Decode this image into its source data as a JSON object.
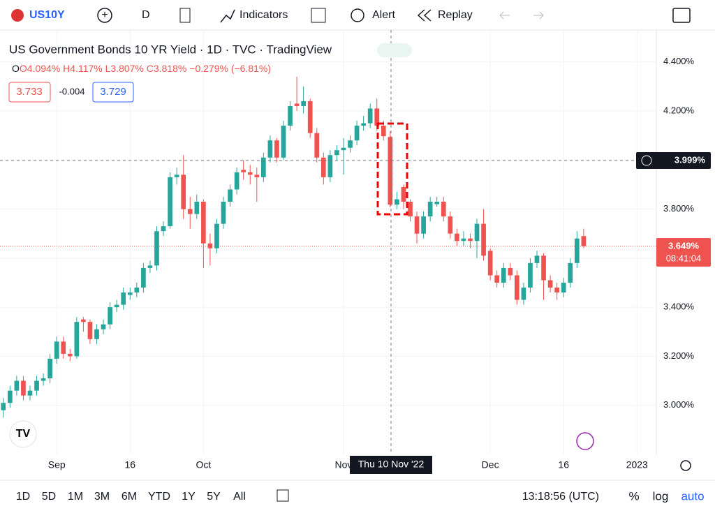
{
  "toolbar": {
    "symbol": "US10Y",
    "interval": "D",
    "indicators": "Indicators",
    "alert": "Alert",
    "replay": "Replay"
  },
  "legend": {
    "title": "US Government Bonds 10 YR Yield · 1D · TVC · TradingView",
    "open": "O4.094%",
    "high": "H4.117%",
    "low": "L3.807%",
    "close": "C3.818%",
    "change": "−0.279% (−6.81%)",
    "bid": "3.733",
    "spread": "-0.004",
    "ask": "3.729"
  },
  "price_labels": {
    "crosshair": "3.999%",
    "last": "3.649%",
    "countdown": "08:41:04",
    "crosshair_date": "Thu 10 Nov '22"
  },
  "bottom_bar": {
    "ranges": [
      "1D",
      "5D",
      "1M",
      "3M",
      "6M",
      "YTD",
      "1Y",
      "5Y",
      "All"
    ],
    "clock": "13:18:56 (UTC)",
    "percent": "%",
    "log": "log",
    "auto": "auto"
  },
  "chart_data": {
    "type": "candlestick",
    "up_color": "#26a69a",
    "down_color": "#ef5350",
    "grid": true,
    "xlim": [
      -0.5,
      97.9
    ],
    "xticks": [
      {
        "value": 8,
        "label": "Sep"
      },
      {
        "value": 19,
        "label": "16"
      },
      {
        "value": 30,
        "label": "Oct"
      },
      {
        "value": 51,
        "label": "Nov"
      },
      {
        "value": 73,
        "label": "Dec"
      },
      {
        "value": 84,
        "label": "16"
      },
      {
        "value": 95,
        "label": "2023"
      }
    ],
    "ylim": [
      2.8,
      4.53
    ],
    "yticks": [
      {
        "value": 3.0,
        "label": "3.000%"
      },
      {
        "value": 3.2,
        "label": "3.200%"
      },
      {
        "value": 3.4,
        "label": "3.400%"
      },
      {
        "value": 3.6,
        "label": "3.600%"
      },
      {
        "value": 3.8,
        "label": "3.800%"
      },
      {
        "value": 4.0,
        "label": "4.000%"
      },
      {
        "value": 4.2,
        "label": "4.200%"
      },
      {
        "value": 4.4,
        "label": "4.400%"
      }
    ],
    "open": [
      2.98,
      3.01,
      3.06,
      3.1,
      3.04,
      3.06,
      3.1,
      3.11,
      3.19,
      3.26,
      3.21,
      3.2,
      3.35,
      3.34,
      3.27,
      3.31,
      3.33,
      3.4,
      3.41,
      3.45,
      3.46,
      3.48,
      3.56,
      3.57,
      3.71,
      3.73,
      3.93,
      3.94,
      3.8,
      3.78,
      3.83,
      3.66,
      3.64,
      3.74,
      3.83,
      3.88,
      3.96,
      3.95,
      3.94,
      3.93,
      4.01,
      4.08,
      4.01,
      4.14,
      4.23,
      4.22,
      4.24,
      4.11,
      4.01,
      3.93,
      4.02,
      4.04,
      4.05,
      4.08,
      4.14,
      4.15,
      4.21,
      4.14,
      4.094,
      3.818,
      3.89,
      3.83,
      3.77,
      3.7,
      3.77,
      3.82,
      3.83,
      3.77,
      3.7,
      3.67,
      3.68,
      3.67,
      3.74,
      3.63,
      3.53,
      3.5,
      3.56,
      3.53,
      3.43,
      3.48,
      3.58,
      3.61,
      3.51,
      3.48,
      3.46,
      3.5,
      3.58,
      3.69
    ],
    "high": [
      3.03,
      3.08,
      3.12,
      3.12,
      3.08,
      3.12,
      3.13,
      3.21,
      3.28,
      3.28,
      3.23,
      3.36,
      3.36,
      3.35,
      3.33,
      3.35,
      3.42,
      3.43,
      3.48,
      3.48,
      3.5,
      3.58,
      3.59,
      3.73,
      3.75,
      3.95,
      3.97,
      4.02,
      3.85,
      3.86,
      3.84,
      3.7,
      3.76,
      3.85,
      3.9,
      3.97,
      4.0,
      3.98,
      3.97,
      4.03,
      4.1,
      4.09,
      4.16,
      4.24,
      4.34,
      4.3,
      4.25,
      4.13,
      4.03,
      4.04,
      4.06,
      4.09,
      4.1,
      4.16,
      4.18,
      4.23,
      4.25,
      4.16,
      4.117,
      3.87,
      3.9,
      3.84,
      3.79,
      3.79,
      3.85,
      3.85,
      3.85,
      3.79,
      3.72,
      3.71,
      3.7,
      3.76,
      3.8,
      3.64,
      3.55,
      3.58,
      3.58,
      3.55,
      3.5,
      3.6,
      3.63,
      3.62,
      3.53,
      3.5,
      3.52,
      3.6,
      3.71,
      3.72
    ],
    "low": [
      2.95,
      2.99,
      3.04,
      3.02,
      3.02,
      3.04,
      3.08,
      3.09,
      3.17,
      3.19,
      3.18,
      3.19,
      3.3,
      3.25,
      3.25,
      3.29,
      3.31,
      3.38,
      3.39,
      3.43,
      3.44,
      3.46,
      3.54,
      3.55,
      3.69,
      3.72,
      3.9,
      3.76,
      3.72,
      3.76,
      3.56,
      3.57,
      3.62,
      3.72,
      3.81,
      3.86,
      3.92,
      3.9,
      3.83,
      3.91,
      3.99,
      3.99,
      4.0,
      4.12,
      4.2,
      4.19,
      4.09,
      3.99,
      3.9,
      3.91,
      4.0,
      3.94,
      4.03,
      4.06,
      4.12,
      4.13,
      4.12,
      4.08,
      3.807,
      3.8,
      3.8,
      3.75,
      3.66,
      3.68,
      3.75,
      3.81,
      3.75,
      3.68,
      3.65,
      3.65,
      3.64,
      3.6,
      3.59,
      3.51,
      3.48,
      3.48,
      3.51,
      3.41,
      3.41,
      3.46,
      3.56,
      3.43,
      3.46,
      3.43,
      3.44,
      3.48,
      3.56,
      3.64
    ],
    "close": [
      3.01,
      3.06,
      3.1,
      3.04,
      3.06,
      3.1,
      3.11,
      3.19,
      3.26,
      3.21,
      3.2,
      3.34,
      3.34,
      3.27,
      3.31,
      3.33,
      3.4,
      3.41,
      3.46,
      3.46,
      3.48,
      3.56,
      3.57,
      3.71,
      3.73,
      3.93,
      3.94,
      3.8,
      3.78,
      3.83,
      3.66,
      3.64,
      3.74,
      3.83,
      3.88,
      3.95,
      3.95,
      3.94,
      3.93,
      4.01,
      4.08,
      4.01,
      4.14,
      4.22,
      4.22,
      4.24,
      4.11,
      4.01,
      3.93,
      4.02,
      4.04,
      4.05,
      4.08,
      4.14,
      4.15,
      4.21,
      4.14,
      4.097,
      3.818,
      3.84,
      3.83,
      3.77,
      3.7,
      3.77,
      3.83,
      3.83,
      3.77,
      3.7,
      3.67,
      3.68,
      3.67,
      3.74,
      3.61,
      3.53,
      3.5,
      3.56,
      3.53,
      3.43,
      3.48,
      3.58,
      3.61,
      3.51,
      3.48,
      3.46,
      3.5,
      3.58,
      3.68,
      3.649
    ]
  }
}
